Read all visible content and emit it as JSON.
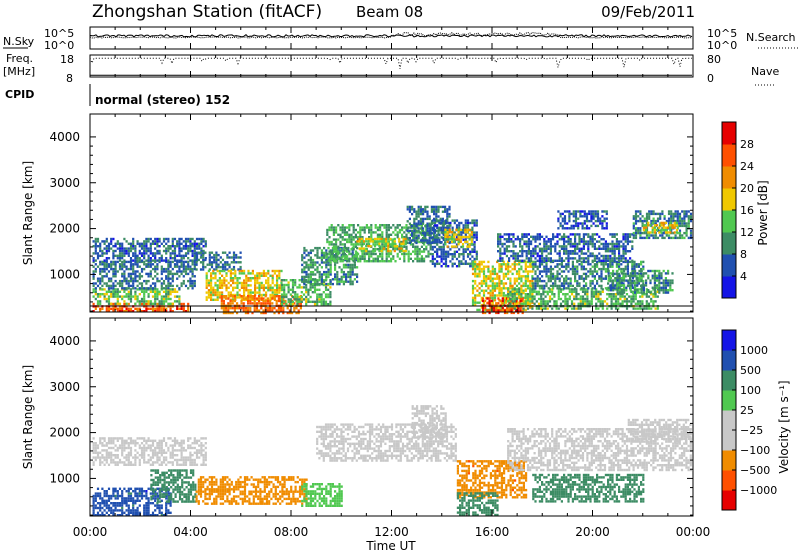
{
  "header": {
    "station": "Zhongshan Station (fitACF)",
    "beam": "Beam 08",
    "date": "09/Feb/2011"
  },
  "status_panel": {
    "nsky_label": "N.Sky",
    "nsearch_label": "N.Search",
    "freq_label": "Freq.",
    "freq_unit": "[MHz]",
    "nave_label": "Nave",
    "cpid_label": "CPID",
    "cpid_value": "normal (stereo) 152",
    "log_ticks": [
      "10^5",
      "10^0"
    ],
    "freq_ticks": [
      "18",
      "8"
    ],
    "nave_ticks": [
      "80",
      "0"
    ]
  },
  "colors": {
    "power": [
      "#1414e6",
      "#2050b0",
      "#3c8c64",
      "#50c850",
      "#f0c800",
      "#f08c00",
      "#ff5000",
      "#e60000"
    ],
    "velocity": [
      "#e60000",
      "#ff5000",
      "#f08c00",
      "#c8c8c8",
      "#c8c8c8",
      "#50c850",
      "#3c8c64",
      "#2050b0",
      "#1414e6"
    ]
  },
  "chart_data": [
    {
      "type": "heatmap",
      "title": "Power",
      "ylabel": "Slant Range [km]",
      "ylim": [
        180,
        4500
      ],
      "yticks": [
        "4000",
        "3000",
        "2000",
        "1000"
      ],
      "xlim": [
        0,
        24
      ],
      "colorbar": {
        "label": "Power [dB]",
        "ticks": [
          "28",
          "24",
          "20",
          "16",
          "12",
          "8",
          "4"
        ],
        "range": [
          0,
          32
        ]
      },
      "regions": [
        {
          "t0": 0.1,
          "t1": 3.9,
          "r0": 180,
          "r1": 380,
          "value": 26
        },
        {
          "t0": 0.1,
          "t1": 3.6,
          "r0": 380,
          "r1": 700,
          "value": 14
        },
        {
          "t0": 0.1,
          "t1": 4.2,
          "r0": 700,
          "r1": 1300,
          "value": 8
        },
        {
          "t0": 0.1,
          "t1": 4.6,
          "r0": 1300,
          "r1": 1800,
          "value": 7
        },
        {
          "t0": 4.2,
          "t1": 6.0,
          "r0": 1100,
          "r1": 1500,
          "value": 8
        },
        {
          "t0": 4.6,
          "t1": 7.6,
          "r0": 450,
          "r1": 1100,
          "value": 18
        },
        {
          "t0": 5.2,
          "t1": 8.4,
          "r0": 180,
          "r1": 550,
          "value": 24
        },
        {
          "t0": 7.6,
          "t1": 9.6,
          "r0": 350,
          "r1": 900,
          "value": 13
        },
        {
          "t0": 8.4,
          "t1": 10.6,
          "r0": 800,
          "r1": 1600,
          "value": 10
        },
        {
          "t0": 9.4,
          "t1": 13.6,
          "r0": 1300,
          "r1": 2100,
          "value": 12
        },
        {
          "t0": 10.6,
          "t1": 12.6,
          "r0": 1500,
          "r1": 1800,
          "value": 17
        },
        {
          "t0": 12.6,
          "t1": 14.3,
          "r0": 1700,
          "r1": 2500,
          "value": 8
        },
        {
          "t0": 13.6,
          "t1": 15.4,
          "r0": 1200,
          "r1": 2200,
          "value": 7
        },
        {
          "t0": 14.1,
          "t1": 15.2,
          "r0": 1600,
          "r1": 2000,
          "value": 18
        },
        {
          "t0": 15.2,
          "t1": 17.6,
          "r0": 250,
          "r1": 1300,
          "value": 17
        },
        {
          "t0": 15.6,
          "t1": 17.2,
          "r0": 180,
          "r1": 500,
          "value": 27
        },
        {
          "t0": 16.6,
          "t1": 22.6,
          "r0": 250,
          "r1": 700,
          "value": 13
        },
        {
          "t0": 17.6,
          "t1": 22.0,
          "r0": 700,
          "r1": 1300,
          "value": 9
        },
        {
          "t0": 16.2,
          "t1": 21.6,
          "r0": 1300,
          "r1": 1900,
          "value": 7
        },
        {
          "t0": 18.6,
          "t1": 20.6,
          "r0": 2000,
          "r1": 2400,
          "value": 6
        },
        {
          "t0": 21.6,
          "t1": 23.9,
          "r0": 1800,
          "r1": 2400,
          "value": 9
        },
        {
          "t0": 22.0,
          "t1": 23.4,
          "r0": 1900,
          "r1": 2150,
          "value": 18
        },
        {
          "t0": 20.6,
          "t1": 23.2,
          "r0": 600,
          "r1": 1100,
          "value": 10
        }
      ]
    },
    {
      "type": "heatmap",
      "title": "Velocity",
      "ylabel": "Slant Range [km]",
      "xlabel": "Time UT",
      "ylim": [
        180,
        4500
      ],
      "yticks": [
        "4000",
        "3000",
        "2000",
        "1000"
      ],
      "xlim": [
        0,
        24
      ],
      "xticks": [
        "00:00",
        "04:00",
        "08:00",
        "12:00",
        "16:00",
        "20:00",
        "00:00"
      ],
      "colorbar": {
        "label": "Velocity [m s⁻¹]",
        "ticks": [
          "1000",
          "500",
          "100",
          "25",
          "−25",
          "−100",
          "−500",
          "−1000"
        ],
        "levels": [
          -1200,
          -1000,
          -500,
          -100,
          -25,
          25,
          100,
          500,
          1000,
          1200
        ]
      },
      "regions": [
        {
          "t0": 0.1,
          "t1": 4.6,
          "r0": 1300,
          "r1": 1900,
          "value": 0
        },
        {
          "t0": 0.1,
          "t1": 3.2,
          "r0": 180,
          "r1": 800,
          "value": 700
        },
        {
          "t0": 2.4,
          "t1": 4.2,
          "r0": 500,
          "r1": 1200,
          "value": 200
        },
        {
          "t0": 4.2,
          "t1": 8.6,
          "r0": 450,
          "r1": 1050,
          "value": -300
        },
        {
          "t0": 8.4,
          "t1": 10.0,
          "r0": 400,
          "r1": 900,
          "value": 60
        },
        {
          "t0": 9.0,
          "t1": 14.6,
          "r0": 1400,
          "r1": 2200,
          "value": 0
        },
        {
          "t0": 12.8,
          "t1": 14.2,
          "r0": 1900,
          "r1": 2600,
          "value": 0
        },
        {
          "t0": 14.6,
          "t1": 17.4,
          "r0": 600,
          "r1": 1400,
          "value": -400
        },
        {
          "t0": 14.6,
          "t1": 16.2,
          "r0": 200,
          "r1": 700,
          "value": 200
        },
        {
          "t0": 16.6,
          "t1": 23.9,
          "r0": 1200,
          "r1": 2100,
          "value": 0
        },
        {
          "t0": 17.6,
          "t1": 22.0,
          "r0": 500,
          "r1": 1100,
          "value": 300
        },
        {
          "t0": 21.4,
          "t1": 23.9,
          "r0": 1800,
          "r1": 2300,
          "value": 0
        }
      ]
    }
  ]
}
